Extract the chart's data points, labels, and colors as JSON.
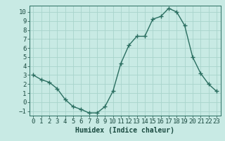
{
  "x": [
    0,
    1,
    2,
    3,
    4,
    5,
    6,
    7,
    8,
    9,
    10,
    11,
    12,
    13,
    14,
    15,
    16,
    17,
    18,
    19,
    20,
    21,
    22,
    23
  ],
  "y": [
    3.0,
    2.5,
    2.2,
    1.5,
    0.3,
    -0.5,
    -0.8,
    -1.2,
    -1.2,
    -0.5,
    1.2,
    4.3,
    6.3,
    7.3,
    7.3,
    9.2,
    9.5,
    10.4,
    10.0,
    8.5,
    5.0,
    3.2,
    2.0,
    1.2
  ],
  "xlim": [
    -0.5,
    23.5
  ],
  "ylim": [
    -1.5,
    10.7
  ],
  "yticks": [
    -1,
    0,
    1,
    2,
    3,
    4,
    5,
    6,
    7,
    8,
    9,
    10
  ],
  "xticks": [
    0,
    1,
    2,
    3,
    4,
    5,
    6,
    7,
    8,
    9,
    10,
    11,
    12,
    13,
    14,
    15,
    16,
    17,
    18,
    19,
    20,
    21,
    22,
    23
  ],
  "xlabel": "Humidex (Indice chaleur)",
  "line_color": "#2a6e60",
  "marker": "+",
  "bg_color": "#c8eae4",
  "grid_color": "#a8d4cc",
  "axis_color": "#2a6e60",
  "label_color": "#1a4a40",
  "xlabel_fontsize": 7,
  "tick_fontsize": 6.5,
  "linewidth": 1.0,
  "markersize": 4
}
